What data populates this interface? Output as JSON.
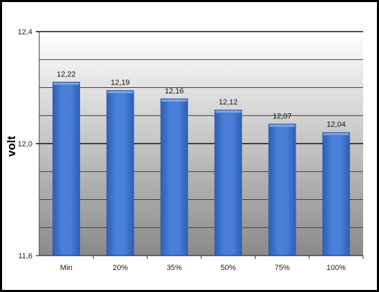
{
  "chart_data": {
    "type": "bar",
    "title": "",
    "xlabel": "",
    "ylabel": "volt",
    "categories": [
      "Min",
      "20%",
      "35%",
      "50%",
      "75%",
      "100%"
    ],
    "values": [
      12.22,
      12.19,
      12.16,
      12.12,
      12.07,
      12.04
    ],
    "value_labels": [
      "12,22",
      "12,19",
      "12,16",
      "12,12",
      "12,07",
      "12,04"
    ],
    "ylim": [
      11.6,
      12.4
    ],
    "major_ticks": [
      11.6,
      12.0,
      12.4
    ],
    "major_tick_labels": [
      "11,6",
      "12,0",
      "12,4"
    ],
    "minor_step": 0.1,
    "grid": true,
    "legend": "none",
    "bar_color": "#4a7fd8",
    "bar_dark_color": "#2d5fb4",
    "plot_bg_top": "#ffffff",
    "plot_bg_bottom": "#8a8a8a"
  }
}
